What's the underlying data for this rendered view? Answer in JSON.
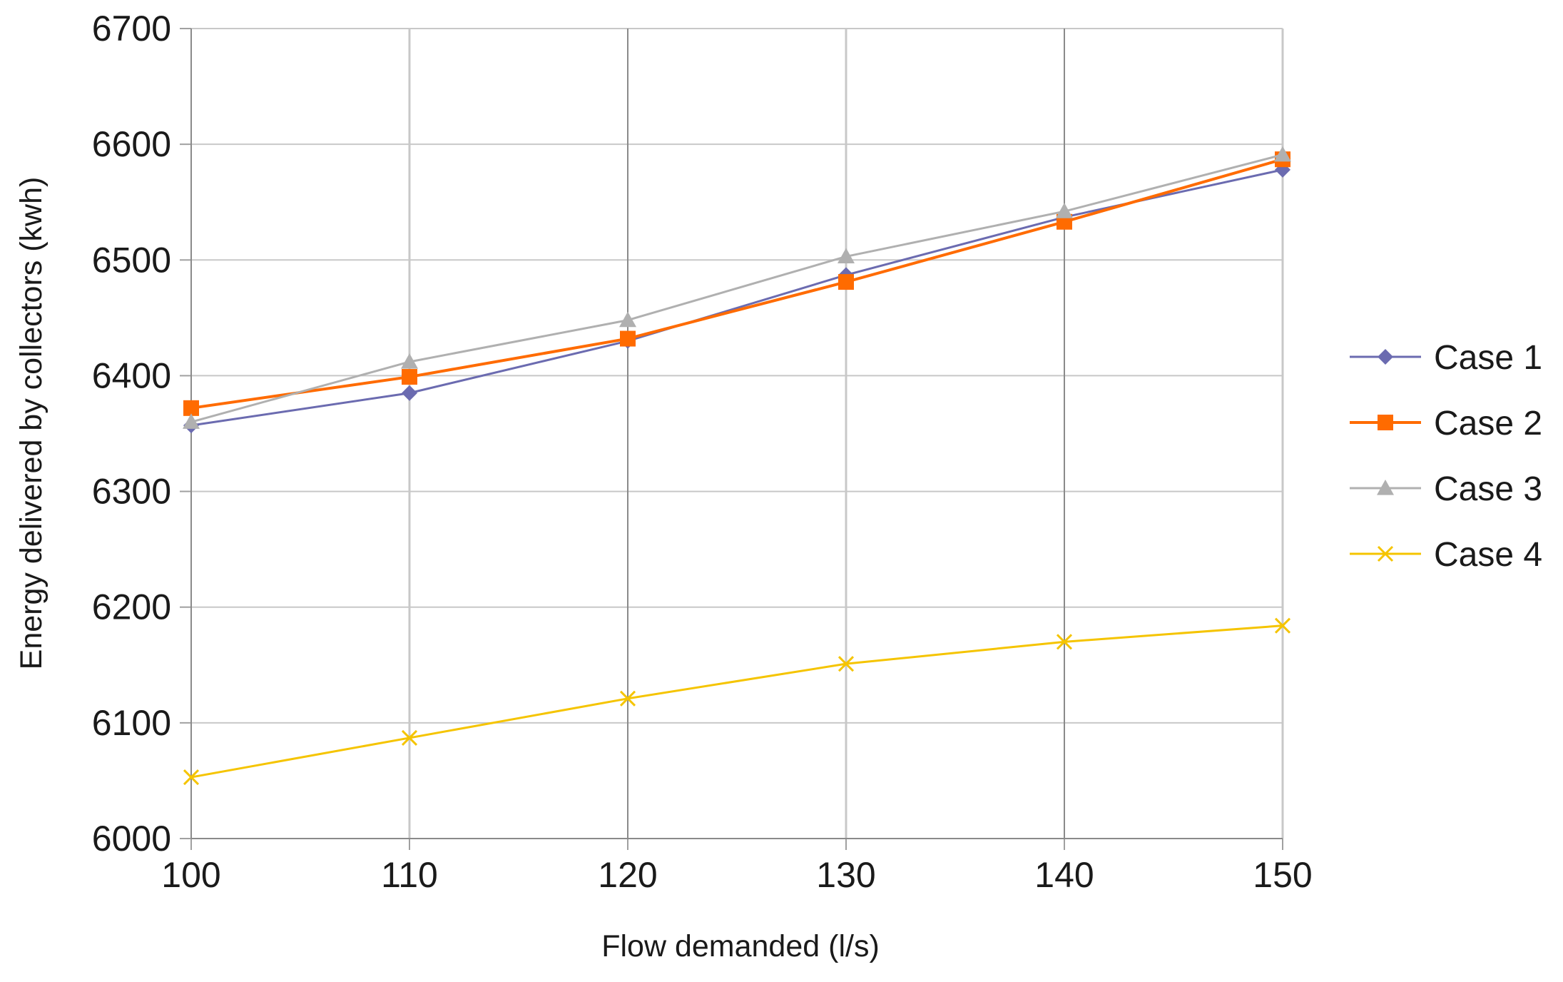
{
  "chart_data": {
    "type": "line",
    "title": "",
    "xlabel": "Flow demanded (l/s)",
    "ylabel": "Energy delivered by collectors (kwh)",
    "x": [
      100,
      110,
      120,
      130,
      140,
      150
    ],
    "xlim": [
      100,
      150
    ],
    "ylim": [
      6000,
      6700
    ],
    "xticks": [
      "100",
      "110",
      "120",
      "130",
      "140",
      "150"
    ],
    "yticks": [
      "6000",
      "6100",
      "6200",
      "6300",
      "6400",
      "6500",
      "6600",
      "6700"
    ],
    "grid": true,
    "legend_position": "right",
    "series": [
      {
        "name": "Case 1",
        "values": [
          6357,
          6385,
          6430,
          6487,
          6537,
          6578
        ],
        "color": "#6b6bb0",
        "marker": "diamond"
      },
      {
        "name": "Case 2",
        "values": [
          6372,
          6399,
          6432,
          6481,
          6533,
          6587
        ],
        "color": "#ff6b00",
        "marker": "square"
      },
      {
        "name": "Case 3",
        "values": [
          6360,
          6412,
          6448,
          6503,
          6542,
          6591
        ],
        "color": "#b0b0b0",
        "marker": "triangle"
      },
      {
        "name": "Case 4",
        "values": [
          6053,
          6087,
          6121,
          6151,
          6170,
          6184
        ],
        "color": "#f5c400",
        "marker": "x"
      }
    ]
  }
}
